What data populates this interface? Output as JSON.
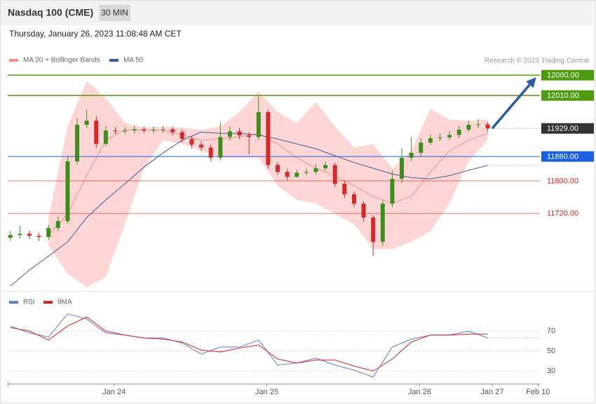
{
  "header": {
    "title": "Nasdaq 100 (CME)",
    "interval": "30 MIN",
    "timestamp": "Thursday, January 26, 2023 11:08:48 AM CET",
    "credit": "Research © 2023 Trading Central"
  },
  "chart_data": [
    {
      "type": "candlestick",
      "up_color": "#3e8e1f",
      "down_color": "#d42a2a",
      "xlim": [
        -16.6,
        75.6
      ],
      "ylim": [
        11529,
        12081
      ],
      "x": [
        -16.3,
        -14.8,
        -13.3,
        -11.8,
        -10.3,
        -8.8,
        -7.3,
        -5.8,
        -4.3,
        -2.8,
        -1.3,
        0.2,
        1.7,
        3.2,
        4.7,
        6.2,
        7.7,
        9.2,
        10.7,
        12.2,
        13.7,
        15.2,
        16.7,
        18.2,
        19.7,
        21.2,
        22.7,
        24.2,
        25.7,
        27.2,
        28.7,
        30.2,
        31.7,
        33.2,
        34.7,
        36.2,
        37.7,
        39.2,
        40.7,
        42.2,
        43.7,
        45.2,
        46.7,
        48.2,
        49.7,
        51.2,
        52.7,
        54.2,
        55.7,
        57.2,
        58.7
      ],
      "open": [
        11660,
        11667,
        11670,
        11665,
        11662,
        11684,
        11701,
        11848,
        11938,
        11948,
        11891,
        11924,
        11922,
        11924,
        11927,
        11924,
        11926,
        11927,
        11920,
        11903,
        11889,
        11882,
        11857,
        11908,
        11922,
        11912,
        11908,
        11969,
        11839,
        11822,
        11810,
        11820,
        11822,
        11831,
        11839,
        11793,
        11767,
        11744,
        11710,
        11650,
        11744,
        11805,
        11857,
        11869,
        11894,
        11905,
        11907,
        11913,
        11926,
        11938,
        11939
      ],
      "high": [
        11677,
        11690,
        11678,
        11672,
        11692,
        11712,
        11862,
        11955,
        11975,
        11960,
        11935,
        11932,
        11932,
        11935,
        11934,
        11934,
        11935,
        11933,
        11927,
        11910,
        11897,
        11890,
        11945,
        11935,
        11930,
        11920,
        12007,
        11975,
        11846,
        11830,
        11828,
        11830,
        11840,
        11848,
        11845,
        11800,
        11774,
        11750,
        11716,
        11752,
        11825,
        11880,
        11908,
        11905,
        11915,
        11916,
        11922,
        11935,
        11948,
        11952,
        11945
      ],
      "low": [
        11652,
        11658,
        11657,
        11652,
        11655,
        11676,
        11695,
        11840,
        11930,
        11880,
        11885,
        11915,
        11915,
        11917,
        11917,
        11917,
        11918,
        11912,
        11895,
        11880,
        11873,
        11848,
        11850,
        11900,
        11903,
        11865,
        11900,
        11830,
        11815,
        11802,
        11808,
        11814,
        11815,
        11825,
        11785,
        11758,
        11735,
        11700,
        11615,
        11640,
        11735,
        11795,
        11848,
        11860,
        11888,
        11898,
        11900,
        11905,
        11920,
        11930,
        11920
      ],
      "close": [
        11667,
        11670,
        11665,
        11662,
        11684,
        11701,
        11848,
        11938,
        11948,
        11891,
        11924,
        11922,
        11924,
        11927,
        11924,
        11926,
        11927,
        11920,
        11903,
        11889,
        11882,
        11857,
        11908,
        11922,
        11912,
        11908,
        11969,
        11839,
        11822,
        11810,
        11820,
        11822,
        11831,
        11839,
        11793,
        11767,
        11744,
        11710,
        11650,
        11744,
        11805,
        11857,
        11869,
        11894,
        11905,
        11907,
        11913,
        11926,
        11938,
        11939,
        11929
      ],
      "series": [
        {
          "name": "MA 20 + Bollinger Bands",
          "color": "#f4908a",
          "band_color": "#ffd6d6",
          "x": [
            -16.3,
            -13.3,
            -10.3,
            -7.3,
            -4.3,
            -1.3,
            1.7,
            4.7,
            7.7,
            10.7,
            13.7,
            16.7,
            19.7,
            22.7,
            25.7,
            28.7,
            31.7,
            34.7,
            37.7,
            40.7,
            43.7,
            46.7,
            49.7,
            52.7,
            55.7,
            58.7
          ],
          "values": [
            null,
            null,
            11667,
            11719,
            11813,
            11900,
            11926,
            11924,
            11924,
            11913,
            11900,
            11903,
            11908,
            11917,
            11891,
            11857,
            11831,
            11813,
            11788,
            11762,
            11745,
            11762,
            11822,
            11874,
            11900,
            11917
          ],
          "upper": [
            null,
            null,
            11710,
            11934,
            12046,
            12003,
            11943,
            11931,
            11934,
            11931,
            11926,
            11934,
            11969,
            12020,
            11969,
            11943,
            11994,
            11934,
            11882,
            11891,
            11831,
            11874,
            11977,
            11951,
            11948,
            11951
          ],
          "lower": [
            null,
            null,
            11641,
            11572,
            11538,
            11563,
            11693,
            11831,
            11900,
            11891,
            11874,
            11857,
            11857,
            11857,
            11788,
            11753,
            11745,
            11719,
            11693,
            11632,
            11632,
            11650,
            11676,
            11745,
            11848,
            11900
          ]
        },
        {
          "name": "MA 50",
          "color": "#3d5c9a",
          "x": [
            -16.3,
            -13.3,
            -10.3,
            -7.3,
            -4.3,
            -1.3,
            1.7,
            4.7,
            7.7,
            10.7,
            13.7,
            16.7,
            19.7,
            22.7,
            25.7,
            28.7,
            31.7,
            34.7,
            37.7,
            40.7,
            43.7,
            46.7,
            49.7,
            52.7,
            55.7,
            58.7
          ],
          "values": [
            11541,
            11581,
            11615,
            11650,
            11710,
            11753,
            11793,
            11834,
            11869,
            11900,
            11920,
            11917,
            11917,
            11913,
            11903,
            11891,
            11879,
            11862,
            11845,
            11831,
            11817,
            11808,
            11805,
            11813,
            11826,
            11838
          ]
        }
      ],
      "levels": [
        {
          "value": 12060,
          "label": "12060.00",
          "color": "#4f9a0e",
          "box": true,
          "style": "solid"
        },
        {
          "value": 12010,
          "label": "12010.00",
          "color": "#4f9a0e",
          "box": true,
          "style": "solid"
        },
        {
          "value": 11929,
          "label": "11929.00",
          "color": "#333333",
          "box": true,
          "style": "dotted"
        },
        {
          "value": 11860,
          "label": "11860.00",
          "color": "#1a5fe0",
          "box": true,
          "style": "solid"
        },
        {
          "value": 11800,
          "label": "11800.00",
          "color": "#e0201c",
          "box": false,
          "style": "thin"
        },
        {
          "value": 11720,
          "label": "11720.00",
          "color": "#e0201c",
          "box": false,
          "style": "thin"
        }
      ],
      "projection": {
        "color": "#2b5aa0",
        "x": [
          59.4,
          66.3
        ],
        "values": [
          11929,
          12055
        ]
      }
    },
    {
      "type": "line",
      "xlim": [
        -16.6,
        75.6
      ],
      "ylim": [
        18.8,
        92.4
      ],
      "yticks": [
        30,
        50,
        70
      ],
      "xticks": [
        {
          "value": 0,
          "label": "Jan 24"
        },
        {
          "value": 24,
          "label": "Jan 25"
        },
        {
          "value": 48,
          "label": "Jan 26"
        },
        {
          "value": 59.4,
          "label": "Jan 27"
        },
        {
          "value": 66.6,
          "label": "Feb 10"
        }
      ],
      "x": [
        -16.3,
        -13.3,
        -10.3,
        -7.3,
        -4.3,
        -1.3,
        1.7,
        4.7,
        7.7,
        10.7,
        13.7,
        16.7,
        19.7,
        22.7,
        25.7,
        28.7,
        31.7,
        34.7,
        37.7,
        40.7,
        43.7,
        46.7,
        49.7,
        52.7,
        55.7,
        58.7
      ],
      "series": [
        {
          "name": "RSI",
          "color": "#5b7fd6",
          "values": [
            75,
            68,
            64,
            87,
            82,
            68,
            66,
            63,
            63,
            58,
            47,
            54,
            54,
            61,
            36,
            38,
            43,
            36,
            31,
            24,
            54,
            62,
            66,
            66,
            70,
            63
          ]
        },
        {
          "name": "9MA",
          "color": "#e0201c",
          "values": [
            73.5,
            70,
            61,
            75,
            84,
            70,
            66,
            63,
            62,
            59,
            51,
            49,
            53,
            56,
            42,
            38,
            41,
            41,
            35,
            30,
            42,
            59,
            66,
            66,
            67,
            67
          ]
        }
      ]
    }
  ]
}
